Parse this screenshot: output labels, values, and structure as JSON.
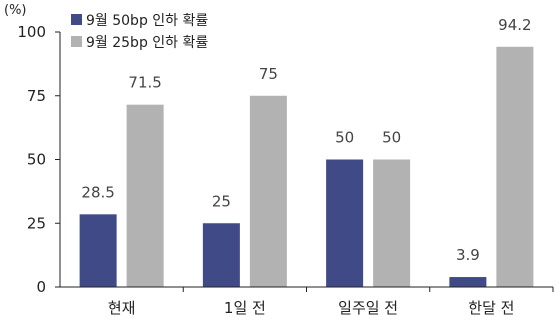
{
  "chart_data": {
    "type": "bar",
    "unit_label": "(%)",
    "categories": [
      "현재",
      "1일 전",
      "일주일 전",
      "한달 전"
    ],
    "series": [
      {
        "name": "9월 50bp 인하 확률",
        "color": "#3f4a86",
        "values": [
          28.5,
          25,
          50,
          3.9
        ],
        "labels": [
          "28.5",
          "25",
          "50",
          "3.9"
        ]
      },
      {
        "name": "9월 25bp 인하 확률",
        "color": "#b2b2b2",
        "values": [
          71.5,
          75,
          50,
          94.2
        ],
        "labels": [
          "71.5",
          "75",
          "50",
          "94.2"
        ]
      }
    ],
    "yticks": [
      0,
      25,
      50,
      75,
      100
    ],
    "ylim": [
      0,
      100
    ],
    "grid": false,
    "legend": "top-left"
  }
}
